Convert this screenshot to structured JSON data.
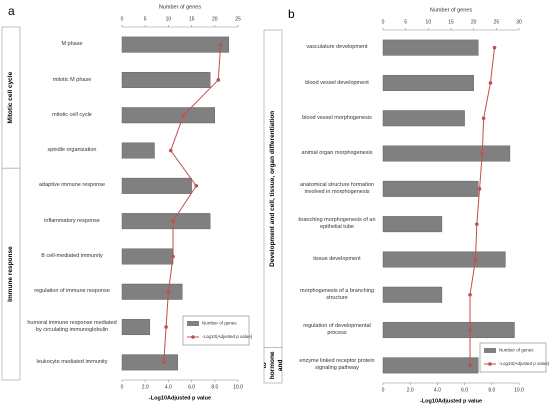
{
  "chart_data": [
    {
      "type": "bar",
      "panel_label": "a",
      "groups": [
        {
          "name": "Mitotic cell cycle",
          "categories": [
            "M phase",
            "mitotic M phase",
            "mitotic cell cycle",
            "spindle organization"
          ]
        },
        {
          "name": "Immune response",
          "categories": [
            "adaptive immune response",
            "inflammatory response",
            "B cell-mediated immunity",
            "regulation of immune response",
            "humoral immune response mediated by circulating immunoglobulin",
            "leukocyte mediated immunity"
          ]
        }
      ],
      "series": [
        {
          "name": "Number of genes",
          "color": "#808080",
          "values": [
            23,
            19,
            20,
            7,
            15,
            19,
            11,
            13,
            6,
            12
          ]
        },
        {
          "name": "-Log10(Adjusted p value)",
          "color": "#c0504d",
          "axis": "x2",
          "values": [
            8.5,
            8.3,
            5.3,
            4.2,
            6.4,
            4.4,
            4.4,
            4.0,
            3.8,
            3.6
          ]
        }
      ],
      "xlabel": "Number of genes",
      "xlim": [
        0,
        25
      ],
      "xticks": [
        0,
        5,
        10,
        15,
        20,
        25
      ],
      "x2label": "-Log10Adjusted p value",
      "x2lim": [
        0,
        10
      ],
      "x2ticks": [
        0,
        {
          "value": 2,
          "label": "2.0"
        },
        {
          "value": 4,
          "label": "4.0"
        },
        {
          "value": 6,
          "label": "6.0"
        },
        {
          "value": 8,
          "label": "8.0"
        },
        {
          "value": 10,
          "label": "10.0"
        }
      ]
    },
    {
      "type": "bar",
      "panel_label": "b",
      "groups": [
        {
          "name": "Development and cell, tissue, organ differentiation",
          "categories": [
            "vasculature development",
            "blood vessel development",
            "blood vessel morphogenesis",
            "animal organ morphogenesis",
            "anatomical structure formation involved in morphogenesis",
            "branching morphogenesis of an epithelial tube",
            "tissue development",
            "morphogenesis of a branching structure",
            "regulation of developmental process"
          ]
        },
        {
          "name": "Response to hormone and corticoids",
          "categories": [
            "enzyme linked receptor protein signaling pathway"
          ]
        }
      ],
      "series": [
        {
          "name": "Number of genes",
          "color": "#808080",
          "values": [
            21,
            20,
            18,
            28,
            21,
            13,
            27,
            13,
            29,
            21
          ]
        },
        {
          "name": "-Log10(Adjusted p value)",
          "color": "#c0504d",
          "axis": "x2",
          "values": [
            8.2,
            7.9,
            7.4,
            7.3,
            7.1,
            6.9,
            6.8,
            6.4,
            6.4,
            6.4
          ]
        }
      ],
      "xlabel": "Number of genes",
      "xlim": [
        0,
        30
      ],
      "xticks": [
        0,
        5,
        10,
        15,
        20,
        25,
        30
      ],
      "x2label": "-Log10Adjusted p value",
      "x2lim": [
        0,
        10
      ],
      "x2ticks": [
        0,
        {
          "value": 2,
          "label": "2.0"
        },
        {
          "value": 4,
          "label": "4.0"
        },
        {
          "value": 6,
          "label": "6.0"
        },
        {
          "value": 8,
          "label": "8.0"
        },
        {
          "value": 10,
          "label": "10.0"
        }
      ]
    }
  ]
}
